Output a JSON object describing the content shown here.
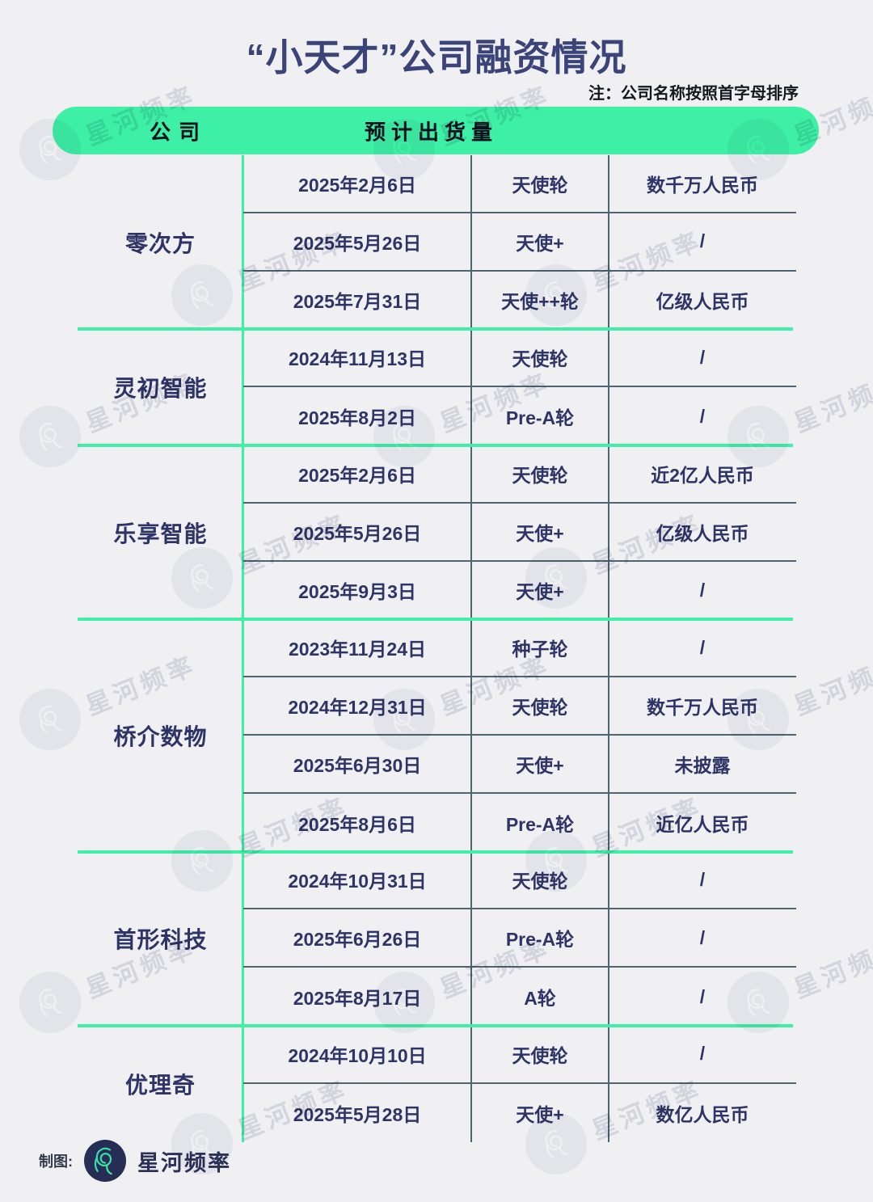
{
  "title": "“小天才”公司融资情况",
  "note": "注：公司名称按照首字母排序",
  "header": {
    "col_company": "公司",
    "col_shipments": "预计出货量"
  },
  "companies": [
    {
      "name": "零次方",
      "rounds": [
        {
          "date": "2025年2月6日",
          "stage": "天使轮",
          "amount": "数千万人民币"
        },
        {
          "date": "2025年5月26日",
          "stage": "天使+",
          "amount": "/"
        },
        {
          "date": "2025年7月31日",
          "stage": "天使++轮",
          "amount": "亿级人民币"
        }
      ]
    },
    {
      "name": "灵初智能",
      "rounds": [
        {
          "date": "2024年11月13日",
          "stage": "天使轮",
          "amount": "/"
        },
        {
          "date": "2025年8月2日",
          "stage": "Pre-A轮",
          "amount": "/"
        }
      ]
    },
    {
      "name": "乐享智能",
      "rounds": [
        {
          "date": "2025年2月6日",
          "stage": "天使轮",
          "amount": "近2亿人民币"
        },
        {
          "date": "2025年5月26日",
          "stage": "天使+",
          "amount": "亿级人民币"
        },
        {
          "date": "2025年9月3日",
          "stage": "天使+",
          "amount": "/"
        }
      ]
    },
    {
      "name": "桥介数物",
      "rounds": [
        {
          "date": "2023年11月24日",
          "stage": "种子轮",
          "amount": "/"
        },
        {
          "date": "2024年12月31日",
          "stage": "天使轮",
          "amount": "数千万人民币"
        },
        {
          "date": "2025年6月30日",
          "stage": "天使+",
          "amount": "未披露"
        },
        {
          "date": "2025年8月6日",
          "stage": "Pre-A轮",
          "amount": "近亿人民币"
        }
      ]
    },
    {
      "name": "首形科技",
      "rounds": [
        {
          "date": "2024年10月31日",
          "stage": "天使轮",
          "amount": "/"
        },
        {
          "date": "2025年6月26日",
          "stage": "Pre-A轮",
          "amount": "/"
        },
        {
          "date": "2025年8月17日",
          "stage": "A轮",
          "amount": "/"
        }
      ]
    },
    {
      "name": "优理奇",
      "rounds": [
        {
          "date": "2024年10月10日",
          "stage": "天使轮",
          "amount": "/"
        },
        {
          "date": "2025年5月28日",
          "stage": "天使+",
          "amount": "数亿人民币"
        }
      ]
    }
  ],
  "footer": {
    "credit_label": "制图:",
    "brand": "星河频率"
  },
  "watermark": {
    "text": "星河频率",
    "icon": "squiggle-logo-icon"
  },
  "colors": {
    "background": "#f0f0f2",
    "accent_green": "#3df0a5",
    "text_navy": "#2e3566",
    "divider_dark": "#4d6570",
    "header_text": "#0d1120",
    "logo_navy": "#272e55",
    "logo_stroke_teal": "#2fd3ae",
    "logo_stroke_mint": "#44eda0"
  }
}
